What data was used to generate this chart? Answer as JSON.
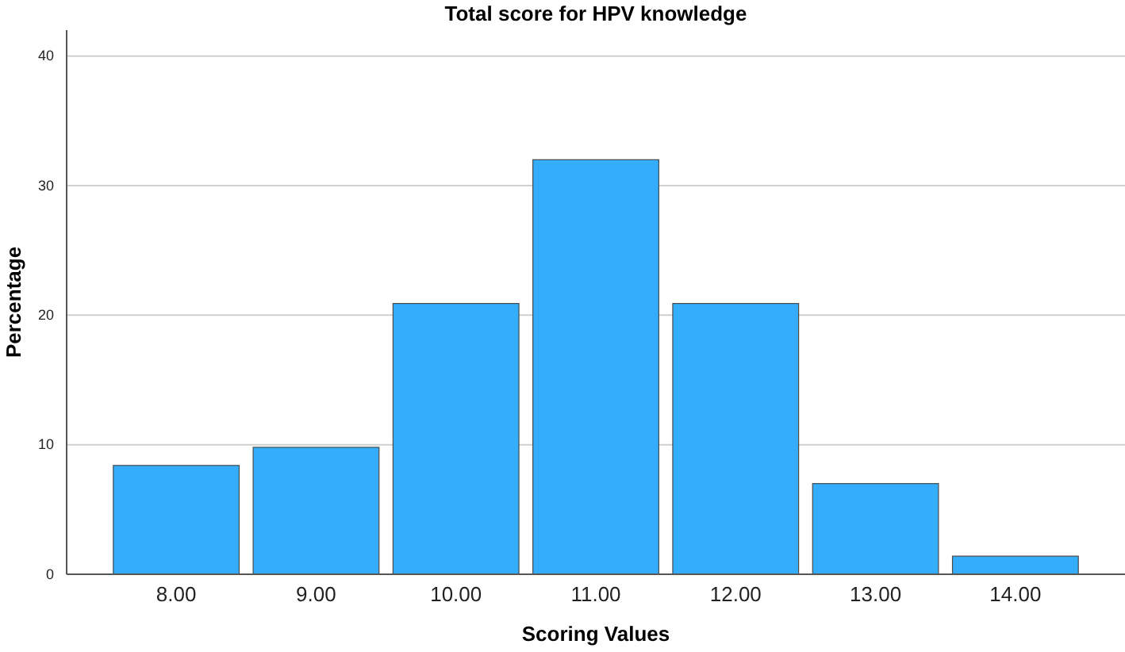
{
  "chart_data": {
    "type": "bar",
    "title": "Total score for HPV knowledge",
    "xlabel": "Scoring Values",
    "ylabel": "Percentage",
    "categories": [
      "8.00",
      "9.00",
      "10.00",
      "11.00",
      "12.00",
      "13.00",
      "14.00"
    ],
    "values": [
      8.4,
      9.8,
      20.9,
      32.0,
      20.9,
      7.0,
      1.4
    ],
    "color": "#33adfc",
    "ylim": [
      0,
      42
    ],
    "yticks": [
      0,
      10,
      20,
      30,
      40
    ],
    "grid": "y"
  }
}
